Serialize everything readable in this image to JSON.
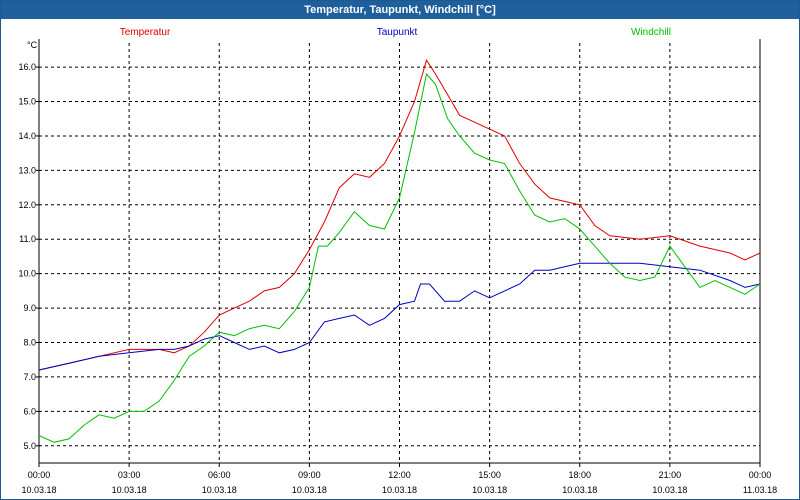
{
  "window": {
    "title": "Temperatur, Taupunkt, Windchill [°C]"
  },
  "chart_data": {
    "type": "line",
    "title": "Temperatur, Taupunkt, Windchill [°C]",
    "ylabel": "°C",
    "xlabel": "",
    "ylim": [
      4.5,
      16.7
    ],
    "yticks": [
      5.0,
      6.0,
      7.0,
      8.0,
      9.0,
      10.0,
      11.0,
      12.0,
      13.0,
      14.0,
      15.0,
      16.0
    ],
    "xlim": [
      0,
      24
    ],
    "xticks": [
      {
        "h": 0,
        "time": "00:00",
        "date": "10.03.18"
      },
      {
        "h": 3,
        "time": "03:00",
        "date": "10.03.18"
      },
      {
        "h": 6,
        "time": "06:00",
        "date": "10.03.18"
      },
      {
        "h": 9,
        "time": "09:00",
        "date": "10.03.18"
      },
      {
        "h": 12,
        "time": "12:00",
        "date": "10.03.18"
      },
      {
        "h": 15,
        "time": "15:00",
        "date": "10.03.18"
      },
      {
        "h": 18,
        "time": "18:00",
        "date": "10.03.18"
      },
      {
        "h": 21,
        "time": "21:00",
        "date": "10.03.18"
      },
      {
        "h": 24,
        "time": "00:00",
        "date": "11.03.18"
      }
    ],
    "grid": true,
    "legend_position": "top",
    "series": [
      {
        "name": "Temperatur",
        "color": "#e00000",
        "x": [
          0,
          1,
          2,
          3,
          4,
          4.5,
          5,
          5.5,
          6,
          6.5,
          7,
          7.5,
          8,
          8.5,
          9,
          9.5,
          10,
          10.5,
          11,
          11.5,
          12,
          12.5,
          12.9,
          13.2,
          13.6,
          14,
          14.5,
          15,
          15.5,
          16,
          16.5,
          17,
          17.5,
          18,
          18.5,
          19,
          20,
          21,
          22,
          23,
          23.5,
          24
        ],
        "values": [
          7.2,
          7.4,
          7.6,
          7.8,
          7.8,
          7.7,
          7.9,
          8.3,
          8.8,
          9.0,
          9.2,
          9.5,
          9.6,
          10.0,
          10.7,
          11.5,
          12.5,
          12.9,
          12.8,
          13.2,
          14.0,
          15.0,
          16.2,
          15.8,
          15.2,
          14.6,
          14.4,
          14.2,
          14.0,
          13.2,
          12.6,
          12.2,
          12.1,
          12.0,
          11.4,
          11.1,
          11.0,
          11.1,
          10.8,
          10.6,
          10.4,
          10.6
        ]
      },
      {
        "name": "Taupunkt",
        "color": "#0000c0",
        "x": [
          0,
          1,
          2,
          3,
          4,
          4.5,
          5,
          5.5,
          6,
          6.5,
          7,
          7.5,
          8,
          8.5,
          9,
          9.5,
          10,
          10.5,
          11,
          11.5,
          12,
          12.5,
          12.7,
          13,
          13.5,
          14,
          14.5,
          15,
          15.5,
          16,
          16.5,
          17,
          17.5,
          18,
          18.5,
          19,
          20,
          21,
          22,
          23,
          23.5,
          24
        ],
        "values": [
          7.2,
          7.4,
          7.6,
          7.7,
          7.8,
          7.8,
          7.9,
          8.1,
          8.2,
          8.0,
          7.8,
          7.9,
          7.7,
          7.8,
          8.0,
          8.6,
          8.7,
          8.8,
          8.5,
          8.7,
          9.1,
          9.2,
          9.7,
          9.7,
          9.2,
          9.2,
          9.5,
          9.3,
          9.5,
          9.7,
          10.1,
          10.1,
          10.2,
          10.3,
          10.3,
          10.3,
          10.3,
          10.2,
          10.1,
          9.8,
          9.6,
          9.7
        ]
      },
      {
        "name": "Windchill",
        "color": "#00c000",
        "x": [
          0,
          0.5,
          1,
          1.5,
          2,
          2.5,
          3,
          3.5,
          4,
          4.5,
          5,
          5.5,
          6,
          6.5,
          7,
          7.5,
          8,
          8.5,
          9,
          9.3,
          9.6,
          10,
          10.5,
          11,
          11.5,
          12,
          12.5,
          12.9,
          13.2,
          13.6,
          14,
          14.5,
          15,
          15.5,
          16,
          16.5,
          17,
          17.5,
          18,
          18.5,
          19,
          19.5,
          20,
          20.5,
          21,
          21.5,
          22,
          22.5,
          23,
          23.5,
          24
        ],
        "values": [
          5.3,
          5.1,
          5.2,
          5.6,
          5.9,
          5.8,
          6.0,
          6.0,
          6.3,
          6.9,
          7.6,
          7.9,
          8.3,
          8.2,
          8.4,
          8.5,
          8.4,
          8.9,
          9.6,
          10.8,
          10.8,
          11.2,
          11.8,
          11.4,
          11.3,
          12.2,
          14.1,
          15.8,
          15.5,
          14.5,
          14.0,
          13.5,
          13.3,
          13.2,
          12.4,
          11.7,
          11.5,
          11.6,
          11.3,
          10.8,
          10.3,
          9.9,
          9.8,
          9.9,
          10.8,
          10.2,
          9.6,
          9.8,
          9.6,
          9.4,
          9.7
        ]
      }
    ]
  }
}
